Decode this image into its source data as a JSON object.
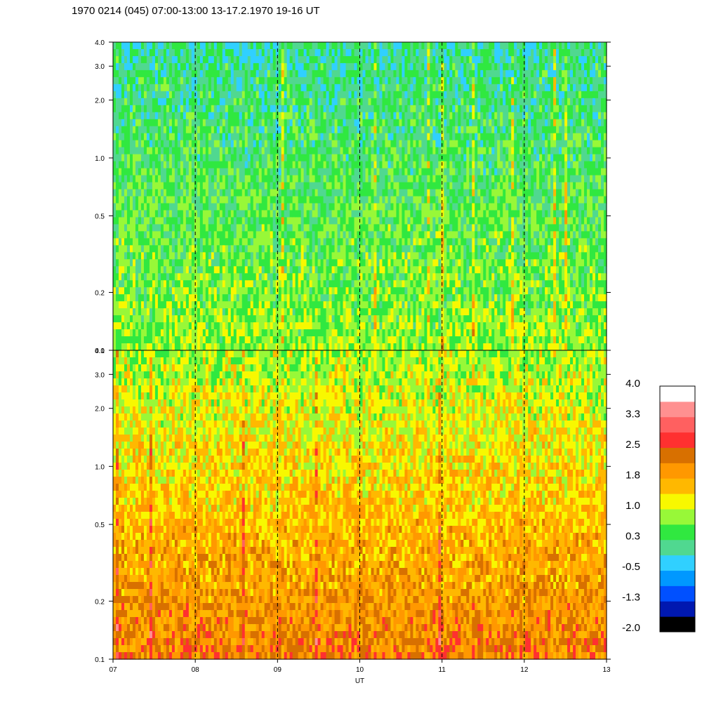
{
  "title": "1970 0214 (045) 07:00-13:00 13-17.2.1970  19-16 UT",
  "chart_data": {
    "type": "heatmap",
    "panels": [
      {
        "name": "upper",
        "y_scale": "log",
        "ylim": [
          0.1,
          4.0
        ],
        "yticks": [
          0.1,
          0.2,
          0.5,
          1.0,
          2.0,
          3.0,
          4.0
        ],
        "ytick_labels": [
          "0.1",
          "0.2",
          "0.5",
          "1.0",
          "2.0",
          "3.0",
          "4.0"
        ],
        "dominant_level_range": [
          -0.5,
          1.0
        ]
      },
      {
        "name": "lower",
        "y_scale": "log",
        "ylim": [
          0.1,
          4.0
        ],
        "yticks": [
          0.1,
          0.2,
          0.5,
          1.0,
          2.0,
          3.0,
          4.0
        ],
        "ytick_labels": [
          "0.1",
          "0.2",
          "0.5",
          "1.0",
          "2.0",
          "3.0",
          "4.0"
        ],
        "dominant_level_range": [
          0.3,
          2.5
        ]
      }
    ],
    "x": {
      "xlim": [
        7,
        13
      ],
      "xticks": [
        7,
        8,
        9,
        10,
        11,
        12,
        13
      ],
      "xtick_labels": [
        "07",
        "08",
        "09",
        "10",
        "11",
        "12",
        "13"
      ],
      "xlabel": "UT",
      "hour_markers": [
        8,
        9,
        10,
        11,
        12
      ]
    },
    "colorbar": {
      "labels": [
        "4.0",
        "3.3",
        "2.5",
        "1.8",
        "1.0",
        "0.3",
        "-0.5",
        "-1.3",
        "-2.0"
      ],
      "colors": [
        "#000000",
        "#0018b0",
        "#0050ff",
        "#0098ff",
        "#30d0ff",
        "#50d890",
        "#30e840",
        "#98f838",
        "#f8f800",
        "#ffb800",
        "#ff9800",
        "#d87000",
        "#ff3030",
        "#ff6060",
        "#ff9090",
        "#ffffff"
      ]
    }
  }
}
